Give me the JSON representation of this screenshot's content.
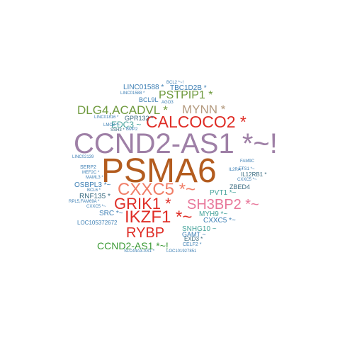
{
  "colors": {
    "purple": "#9e7fa6",
    "brown": "#b35c1f",
    "red": "#df2d26",
    "salmon": "#f07d66",
    "pink": "#e8779a",
    "green": "#6f9a3e",
    "darkgreen": "#3b9a35",
    "tan": "#b49a7e",
    "blue": "#3d7fb4",
    "teal": "#46a39b",
    "darkblue": "#37697f",
    "gray": "#8a8a8a"
  },
  "words": [
    {
      "text": "PSMA6",
      "color": "brown"
    },
    {
      "text": "CCND2-AS1 *~!",
      "color": "purple"
    },
    {
      "text": "CALCOCO2 *",
      "color": "red"
    },
    {
      "text": "CXXC5 *~",
      "color": "salmon"
    },
    {
      "text": "SH3BP2 *~",
      "color": "pink"
    },
    {
      "text": "GRIK1 *",
      "color": "red"
    },
    {
      "text": "IKZF1 *~",
      "color": "red"
    },
    {
      "text": "RYBP",
      "color": "red"
    },
    {
      "text": "DLG4,ACADVL *",
      "color": "green"
    },
    {
      "text": "PSTPIP1 *",
      "color": "green"
    },
    {
      "text": "MYNN *",
      "color": "tan"
    },
    {
      "text": "CCND2-AS1 *~!",
      "color": "darkgreen"
    },
    {
      "text": "EDC3 ~",
      "color": "teal"
    },
    {
      "text": "LINC01588 *",
      "color": "blue"
    },
    {
      "text": "TBC1D2B *",
      "color": "blue"
    },
    {
      "text": "BCL9L",
      "color": "blue"
    },
    {
      "text": "GPR132 *",
      "color": "darkblue"
    },
    {
      "text": "OSBPL3 *~",
      "color": "blue"
    },
    {
      "text": "RNF135 *",
      "color": "darkblue"
    },
    {
      "text": "SRC *~",
      "color": "blue"
    },
    {
      "text": "LOC105372672",
      "color": "blue"
    },
    {
      "text": "ZBED4",
      "color": "darkblue"
    },
    {
      "text": "PVT1 *~",
      "color": "teal"
    },
    {
      "text": "MYH9 *~",
      "color": "teal"
    },
    {
      "text": "CXXC5 *~",
      "color": "blue"
    },
    {
      "text": "SNHG10 ~",
      "color": "teal"
    },
    {
      "text": "GAMT ~",
      "color": "blue"
    },
    {
      "text": "EXD3 *",
      "color": "darkblue"
    },
    {
      "text": "CELF2 *",
      "color": "blue"
    },
    {
      "text": "IL12RB1 *",
      "color": "darkblue"
    },
    {
      "text": "SERP2",
      "color": "blue"
    },
    {
      "text": "LINC02139",
      "color": "blue"
    },
    {
      "text": "IL2RA *",
      "color": "blue"
    },
    {
      "text": "ETS1 *~",
      "color": "blue"
    },
    {
      "text": "FAM9C",
      "color": "blue"
    },
    {
      "text": "CXXC5 *~",
      "color": "blue"
    },
    {
      "text": "LINC01588 *",
      "color": "blue"
    },
    {
      "text": "BCL2 *~!",
      "color": "blue"
    },
    {
      "text": "AGO3",
      "color": "blue"
    },
    {
      "text": "LINC01816 *",
      "color": "blue"
    },
    {
      "text": "LMO2 *~",
      "color": "blue"
    },
    {
      "text": "SSH3 *",
      "color": "darkblue"
    },
    {
      "text": "BMP2",
      "color": "blue"
    },
    {
      "text": "MEF2C *",
      "color": "blue"
    },
    {
      "text": "MAML3 *",
      "color": "blue"
    },
    {
      "text": "BCL6 *",
      "color": "blue"
    },
    {
      "text": "RPL5,FAM69A *",
      "color": "blue"
    },
    {
      "text": "CXXC5 *~",
      "color": "blue"
    },
    {
      "text": "SLC44A3-AS1 *",
      "color": "blue"
    },
    {
      "text": "LOC101927851",
      "color": "blue"
    }
  ]
}
